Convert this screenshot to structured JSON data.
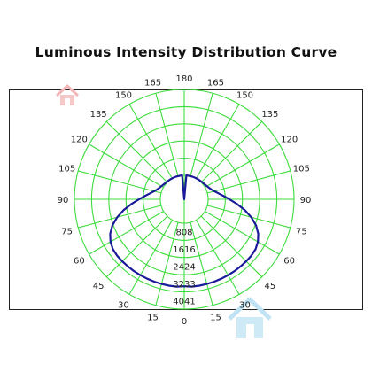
{
  "chart_data": {
    "type": "polar",
    "title": "Luminous Intensity Distribution Curve",
    "angle_labels_left": [
      "165",
      "150",
      "135",
      "120",
      "105",
      "90",
      "75",
      "60",
      "45",
      "30",
      "15"
    ],
    "angle_labels_right": [
      "165",
      "150",
      "135",
      "120",
      "105",
      "90",
      "75",
      "60",
      "45",
      "30",
      "15"
    ],
    "angle_label_top": "180",
    "angle_label_bottom": "0",
    "angle_ticks": [
      165,
      150,
      135,
      120,
      105,
      90,
      75,
      60,
      45,
      30,
      15
    ],
    "radial_labels": [
      "808",
      "1616",
      "2424",
      "3233",
      "4041"
    ],
    "radial_values": [
      808,
      1616,
      2424,
      3233,
      4041
    ],
    "r_max": 4041,
    "series": [
      {
        "color": "#1a1a9a",
        "angles": [
          0,
          5,
          10,
          15,
          20,
          25,
          30,
          35,
          40,
          45,
          50,
          55,
          60,
          65,
          70,
          75,
          80,
          85,
          90,
          95,
          100,
          105,
          110,
          115,
          120,
          125,
          130,
          135,
          140,
          145,
          150,
          155,
          160,
          165,
          170,
          175,
          180
        ],
        "values": [
          2968,
          2998,
          2998,
          2998,
          2998,
          2998,
          2998,
          2998,
          2998,
          2998,
          2998,
          2968,
          2878,
          2720,
          2470,
          2140,
          1760,
          1360,
          1000,
          720,
          500,
          340,
          230,
          160,
          110,
          75,
          50,
          35,
          25,
          18,
          12,
          8,
          5,
          3,
          2,
          1,
          0
        ]
      }
    ],
    "grid_color": "#3ddc3d",
    "grid": true
  }
}
